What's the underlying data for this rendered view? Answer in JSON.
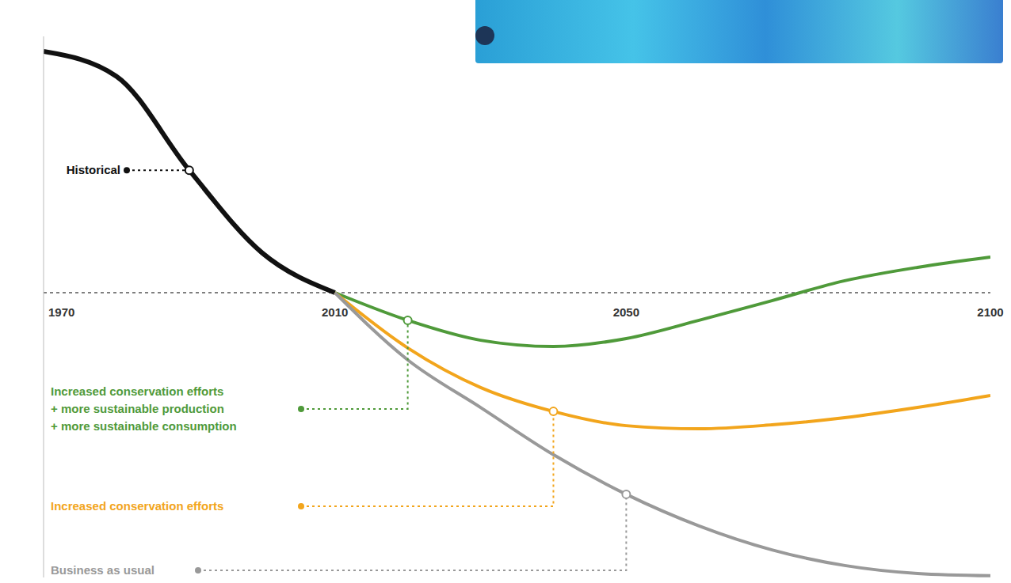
{
  "chart_data": {
    "type": "line",
    "x": [
      1970,
      1980,
      1990,
      2000,
      2010,
      2020,
      2030,
      2040,
      2050,
      2060,
      2070,
      2080,
      2090,
      2100
    ],
    "xlim": [
      1970,
      2100
    ],
    "xticks": [
      1970,
      2010,
      2050,
      2100
    ],
    "ylim": [
      -100,
      90
    ],
    "tick_labels": "x",
    "grid": false,
    "reference_line": 0,
    "series": [
      {
        "name": "Historical",
        "color": "#111111",
        "values": [
          84.7,
          76.0,
          43.0,
          14.0,
          0,
          null,
          null,
          null,
          null,
          null,
          null,
          null,
          null,
          null
        ]
      },
      {
        "name": "Increased conservation efforts + more sustainable production + more sustainable consumption",
        "color": "#4f9a3a",
        "values": [
          null,
          null,
          null,
          null,
          0,
          -9.7,
          -16.7,
          -18.9,
          -16.1,
          -9.7,
          -2.8,
          4.2,
          8.9,
          12.5
        ]
      },
      {
        "name": "Increased conservation efforts",
        "color": "#f2a51c",
        "values": [
          null,
          null,
          null,
          null,
          0,
          -19.4,
          -33.3,
          -41.7,
          -46.7,
          -47.8,
          -46.4,
          -43.9,
          -40.3,
          -36.1
        ]
      },
      {
        "name": "Business as usual",
        "color": "#999999",
        "values": [
          null,
          null,
          null,
          null,
          0,
          -23.6,
          -40.3,
          -56.9,
          -70.8,
          -81.9,
          -90.3,
          -95.8,
          -98.6,
          -99.4
        ]
      }
    ]
  }
}
